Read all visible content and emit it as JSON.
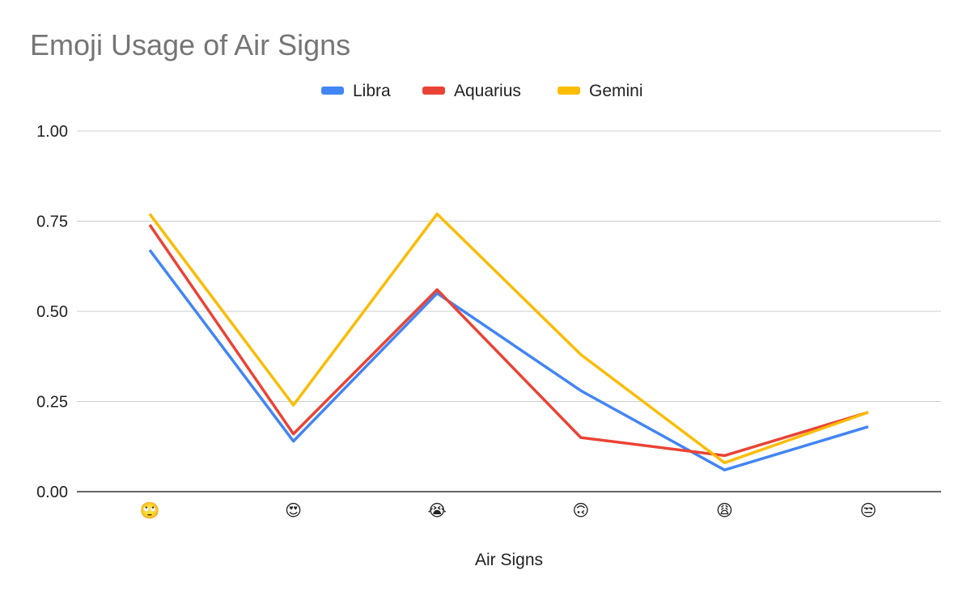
{
  "chart_data": {
    "type": "line",
    "title": "Emoji Usage of Air Signs",
    "xlabel": "Air Signs",
    "ylabel": "",
    "categories": [
      "🙄",
      "😍",
      "😭",
      "🙃",
      "😩",
      "😒"
    ],
    "ylim": [
      0,
      1
    ],
    "yticks": [
      "0.00",
      "0.25",
      "0.50",
      "0.75",
      "1.00"
    ],
    "ytick_values": [
      0,
      0.25,
      0.5,
      0.75,
      1.0
    ],
    "grid": true,
    "legend_position": "top",
    "series": [
      {
        "name": "Libra",
        "color": "#4285F4",
        "values": [
          0.67,
          0.14,
          0.55,
          0.28,
          0.06,
          0.18
        ]
      },
      {
        "name": "Aquarius",
        "color": "#EA4335",
        "values": [
          0.74,
          0.16,
          0.56,
          0.15,
          0.1,
          0.22
        ]
      },
      {
        "name": "Gemini",
        "color": "#FBBC04",
        "values": [
          0.77,
          0.24,
          0.77,
          0.38,
          0.08,
          0.22
        ]
      }
    ]
  }
}
